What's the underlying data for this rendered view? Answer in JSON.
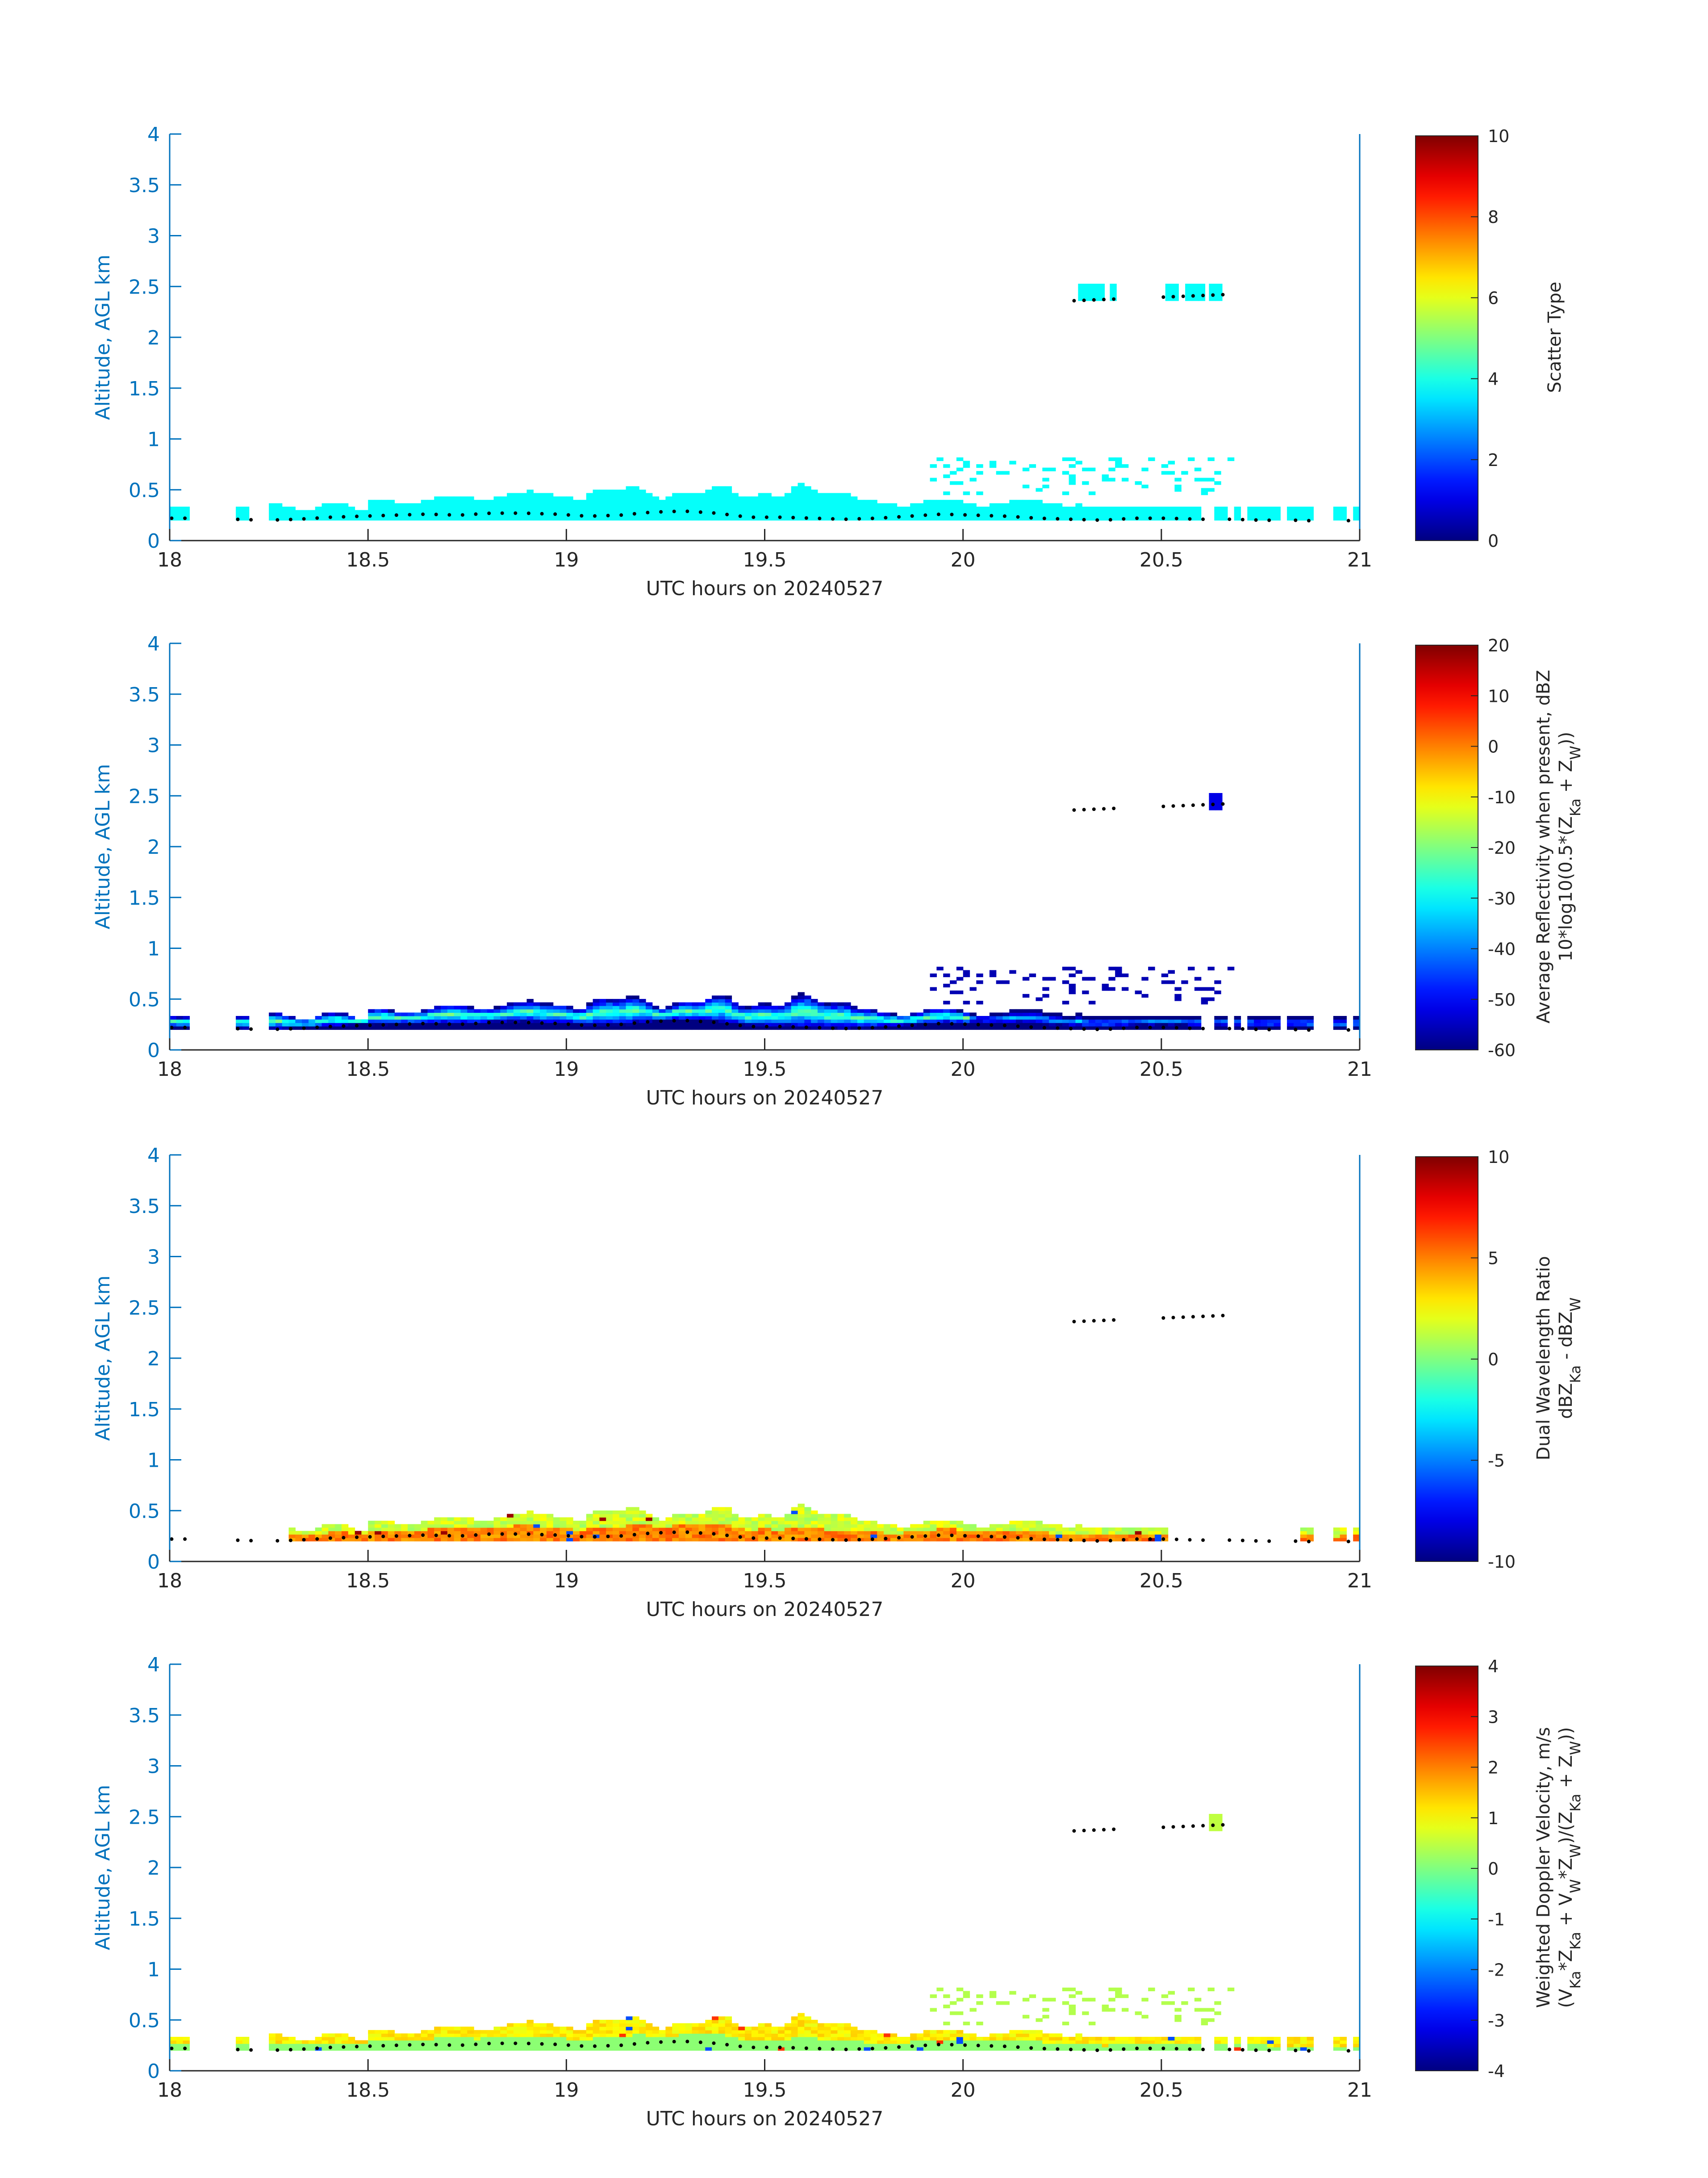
{
  "chart_data": [
    {
      "type": "heatmap",
      "xlabel": "UTC hours on 20240527",
      "ylabel": "Altitude, AGL km",
      "xlim": [
        18,
        21
      ],
      "ylim": [
        0,
        4
      ],
      "xticks": [
        "18",
        "18.5",
        "19",
        "19.5",
        "20",
        "20.5",
        "21"
      ],
      "yticks": [
        "0",
        "0.5",
        "1",
        "1.5",
        "2",
        "2.5",
        "3",
        "3.5",
        "4"
      ],
      "colorbar": {
        "colormap": "jet",
        "label_lines": [
          "Scatter Type"
        ],
        "range": [
          0,
          10
        ],
        "ticks": [
          "0",
          "2",
          "4",
          "6",
          "8",
          "10"
        ]
      },
      "cloud_base_km": [
        0.22,
        0.22,
        0.21,
        0.2,
        0.21,
        0.23,
        0.24,
        0.25,
        0.26,
        0.25,
        0.27,
        0.27,
        0.26,
        0.24,
        0.25,
        0.28,
        0.29,
        0.27,
        0.23,
        0.23,
        0.22,
        0.21,
        0.22,
        0.24,
        0.26,
        0.25,
        0.24,
        0.22,
        0.21,
        0.2,
        0.22,
        0.22,
        0.21,
        0.21,
        0.2,
        0.2,
        0.19,
        0.2
      ],
      "upper_layer": {
        "x": [
          20.28,
          20.66
        ],
        "y_km": [
          2.36,
          2.42
        ]
      }
    },
    {
      "type": "heatmap",
      "xlabel": "UTC hours on 20240527",
      "ylabel": "Altitude, AGL km",
      "xlim": [
        18,
        21
      ],
      "ylim": [
        0,
        4
      ],
      "xticks": [
        "18",
        "18.5",
        "19",
        "19.5",
        "20",
        "20.5",
        "21"
      ],
      "yticks": [
        "0",
        "0.5",
        "1",
        "1.5",
        "2",
        "2.5",
        "3",
        "3.5",
        "4"
      ],
      "colorbar": {
        "colormap": "jet",
        "label_lines": [
          "Average Reflectivity when present, dBZ",
          "10*log10(0.5*(Z_Ka + Z_W))"
        ],
        "range": [
          -60,
          20
        ],
        "ticks": [
          "-60",
          "-50",
          "-40",
          "-30",
          "-20",
          "-10",
          "0",
          "10",
          "20"
        ]
      },
      "cloud_base_km": [
        0.22,
        0.22,
        0.21,
        0.2,
        0.21,
        0.23,
        0.24,
        0.25,
        0.26,
        0.25,
        0.27,
        0.27,
        0.26,
        0.24,
        0.25,
        0.28,
        0.29,
        0.27,
        0.23,
        0.23,
        0.22,
        0.21,
        0.22,
        0.24,
        0.26,
        0.25,
        0.24,
        0.22,
        0.21,
        0.2,
        0.22,
        0.22,
        0.21,
        0.21,
        0.2,
        0.2,
        0.19,
        0.2
      ],
      "upper_layer": {
        "x": [
          20.28,
          20.66
        ],
        "y_km": [
          2.36,
          2.42
        ]
      }
    },
    {
      "type": "heatmap",
      "xlabel": "UTC hours on 20240527",
      "ylabel": "Altitude, AGL km",
      "xlim": [
        18,
        21
      ],
      "ylim": [
        0,
        4
      ],
      "xticks": [
        "18",
        "18.5",
        "19",
        "19.5",
        "20",
        "20.5",
        "21"
      ],
      "yticks": [
        "0",
        "0.5",
        "1",
        "1.5",
        "2",
        "2.5",
        "3",
        "3.5",
        "4"
      ],
      "colorbar": {
        "colormap": "jet",
        "label_lines": [
          "Dual Wavelength Ratio",
          "dBZ_Ka - dBZ_W"
        ],
        "range": [
          -10,
          10
        ],
        "ticks": [
          "-10",
          "-5",
          "0",
          "5",
          "10"
        ]
      },
      "cloud_base_km": [
        0.22,
        0.22,
        0.21,
        0.2,
        0.21,
        0.23,
        0.24,
        0.25,
        0.26,
        0.25,
        0.27,
        0.27,
        0.26,
        0.24,
        0.25,
        0.28,
        0.29,
        0.27,
        0.23,
        0.23,
        0.22,
        0.21,
        0.22,
        0.24,
        0.26,
        0.25,
        0.24,
        0.22,
        0.21,
        0.2,
        0.22,
        0.22,
        0.21,
        0.21,
        0.2,
        0.2,
        0.19,
        0.2
      ],
      "upper_layer": {
        "x": [
          20.28,
          20.66
        ],
        "y_km": [
          2.36,
          2.42
        ]
      }
    },
    {
      "type": "heatmap",
      "xlabel": "UTC hours on 20240527",
      "ylabel": "Altitude, AGL km",
      "xlim": [
        18,
        21
      ],
      "ylim": [
        0,
        4
      ],
      "xticks": [
        "18",
        "18.5",
        "19",
        "19.5",
        "20",
        "20.5",
        "21"
      ],
      "yticks": [
        "0",
        "0.5",
        "1",
        "1.5",
        "2",
        "2.5",
        "3",
        "3.5",
        "4"
      ],
      "colorbar": {
        "colormap": "jet",
        "label_lines": [
          "Weighted Doppler Velocity, m/s",
          "(V_Ka*Z_Ka + V_W*Z_W)/(Z_Ka + Z_W))"
        ],
        "range": [
          -4,
          4
        ],
        "ticks": [
          "-4",
          "-3",
          "-2",
          "-1",
          "0",
          "1",
          "2",
          "3",
          "4"
        ]
      },
      "cloud_base_km": [
        0.22,
        0.22,
        0.21,
        0.2,
        0.21,
        0.23,
        0.24,
        0.25,
        0.26,
        0.25,
        0.27,
        0.27,
        0.26,
        0.24,
        0.25,
        0.28,
        0.29,
        0.27,
        0.23,
        0.23,
        0.22,
        0.21,
        0.22,
        0.24,
        0.26,
        0.25,
        0.24,
        0.22,
        0.21,
        0.2,
        0.22,
        0.22,
        0.21,
        0.21,
        0.2,
        0.2,
        0.19,
        0.2
      ],
      "upper_layer": {
        "x": [
          20.28,
          20.66
        ],
        "y_km": [
          2.36,
          2.42
        ]
      }
    }
  ],
  "colors": {
    "axis": "#0072BD",
    "text": "#262626",
    "cloud_base_marker": "#000000"
  }
}
